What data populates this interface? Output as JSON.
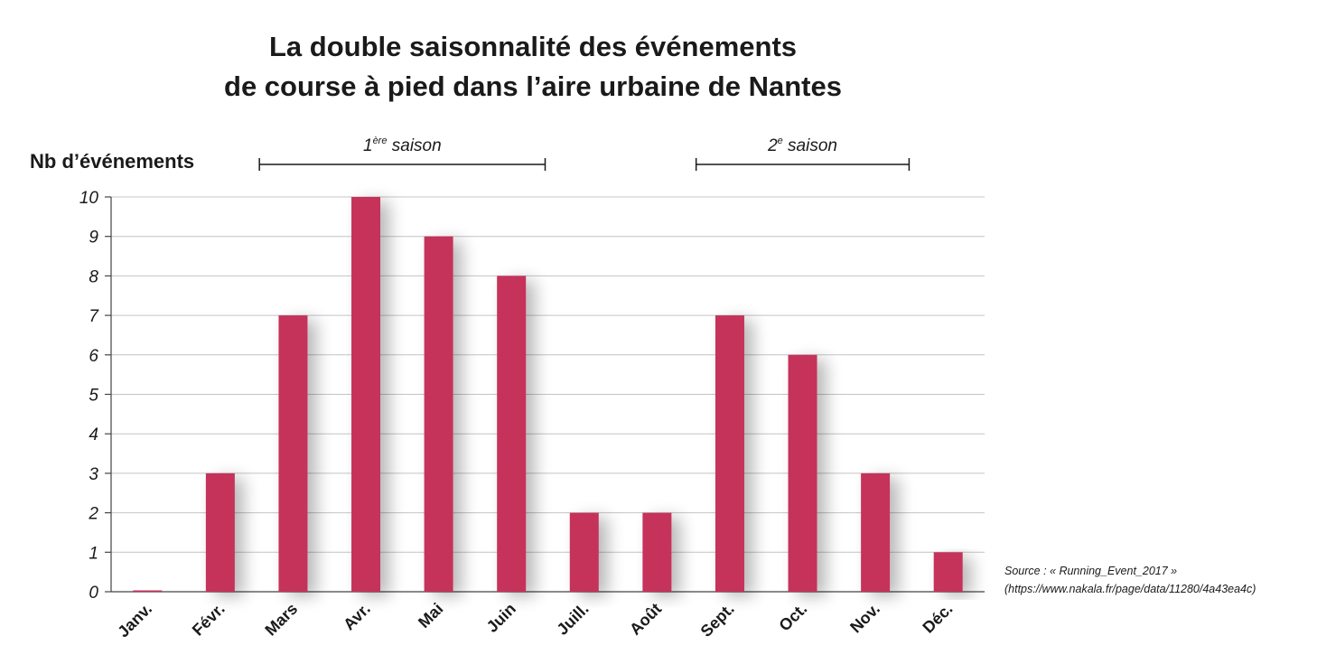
{
  "chart_data": {
    "type": "bar",
    "title_lines": [
      "La double saisonnalité des événements",
      "de course à pied dans l’aire urbaine de Nantes"
    ],
    "ylabel": "Nb d’événements",
    "categories": [
      "Janv.",
      "Févr.",
      "Mars",
      "Avr.",
      "Mai",
      "Juin",
      "Juill.",
      "Août",
      "Sept.",
      "Oct.",
      "Nov.",
      "Déc."
    ],
    "values": [
      0,
      3,
      7,
      10,
      9,
      8,
      2,
      2,
      7,
      6,
      3,
      1
    ],
    "ylim": [
      0,
      10
    ],
    "yticks": [
      0,
      1,
      2,
      3,
      4,
      5,
      6,
      7,
      8,
      9,
      10
    ],
    "grid": true,
    "bar_color": "#c5305a",
    "seasons": [
      {
        "num": "1",
        "sup": "ère",
        "label": " saison",
        "from": "Mars",
        "to": "Juin"
      },
      {
        "num": "2",
        "sup": "e",
        "label": " saison",
        "from": "Sept.",
        "to": "Nov."
      }
    ],
    "source_lines": [
      "Source : « Running_Event_2017 »",
      "(https://www.nakala.fr/page/data/11280/4a43ea4c)"
    ]
  }
}
